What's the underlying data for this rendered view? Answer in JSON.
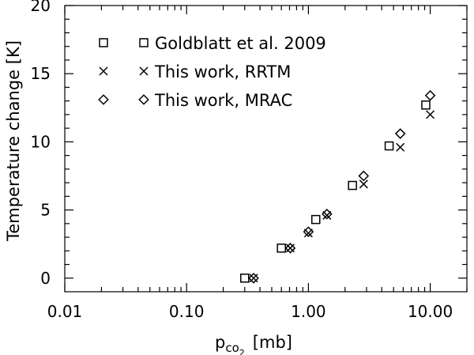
{
  "chart_data": {
    "type": "scatter",
    "title": "",
    "xlabel_main": "p",
    "xlabel_sub": "co",
    "xlabel_subsub": "2",
    "xlabel_unit": "[mb]",
    "ylabel": "Temperature change [K]",
    "xscale": "log",
    "xlim": [
      0.01,
      20
    ],
    "ylim": [
      -1,
      20
    ],
    "x_ticks": [
      0.01,
      0.1,
      1.0,
      10.0
    ],
    "x_tick_labels": [
      "0.01",
      "0.10",
      "1.00",
      "10.00"
    ],
    "y_ticks": [
      0,
      5,
      10,
      15,
      20
    ],
    "y_tick_labels": [
      "0",
      "5",
      "10",
      "15",
      "20"
    ],
    "grid": false,
    "legend_position": "top-left",
    "series": [
      {
        "name": "Goldblatt et al. 2009",
        "marker": "square",
        "x": [
          0.3,
          0.6,
          1.15,
          2.3,
          4.6,
          9.2
        ],
        "y": [
          0.0,
          2.2,
          4.3,
          6.8,
          9.7,
          12.7
        ]
      },
      {
        "name": "This work, RRTM",
        "marker": "x",
        "x": [
          0.355,
          0.71,
          1.0,
          1.42,
          2.84,
          5.68,
          10.0
        ],
        "y": [
          0.0,
          2.2,
          3.3,
          4.6,
          6.9,
          9.6,
          12.0
        ]
      },
      {
        "name": "This work, MRAC",
        "marker": "diamond",
        "x": [
          0.355,
          0.71,
          1.0,
          1.42,
          2.84,
          5.68,
          10.0
        ],
        "y": [
          0.0,
          2.2,
          3.4,
          4.7,
          7.5,
          10.6,
          13.4
        ]
      }
    ]
  }
}
